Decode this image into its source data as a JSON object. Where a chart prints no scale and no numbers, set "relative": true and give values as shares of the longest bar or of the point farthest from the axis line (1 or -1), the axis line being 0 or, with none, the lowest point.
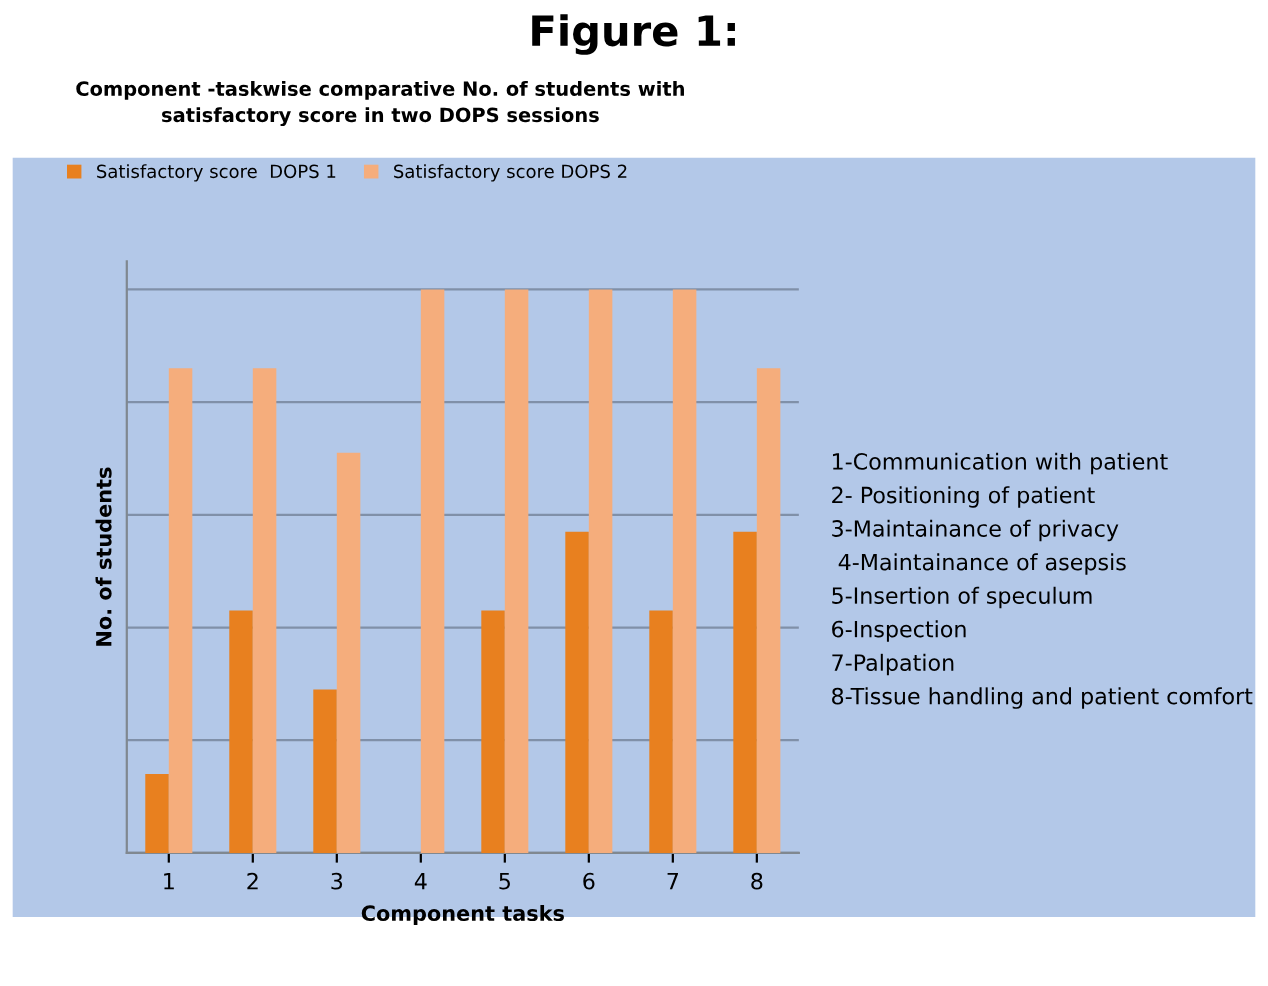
{
  "chart_data": {
    "type": "bar",
    "title": "Figure 1:",
    "subtitle": "Component -taskwise comparative No. of students with\nsatisfactory score in two DOPS sessions",
    "xlabel": "Component tasks",
    "ylabel": "No. of students",
    "categories": [
      "1",
      "2",
      "3",
      "4",
      "5",
      "6",
      "7",
      "8"
    ],
    "relative": true,
    "grid": "y",
    "legend": "top left",
    "series": [
      {
        "name": "Satisfactory score  DOPS 1",
        "color": "#e8801f",
        "values": [
          0.14,
          0.43,
          0.29,
          0,
          0.43,
          0.57,
          0.43,
          0.57
        ]
      },
      {
        "name": "Satisfactory score DOPS 2",
        "color": "#f5ad7c",
        "values": [
          0.86,
          0.86,
          0.71,
          1,
          1,
          1,
          1,
          0.86
        ]
      }
    ],
    "annotations": [
      "1-Communication with patient",
      "2- Positioning of patient",
      "3-Maintainance of privacy",
      " 4-Maintainance of asepsis",
      "5-Insertion of speculum",
      "6-Inspection",
      "7-Palpation",
      "8-Tissue handling and patient comfort"
    ]
  }
}
